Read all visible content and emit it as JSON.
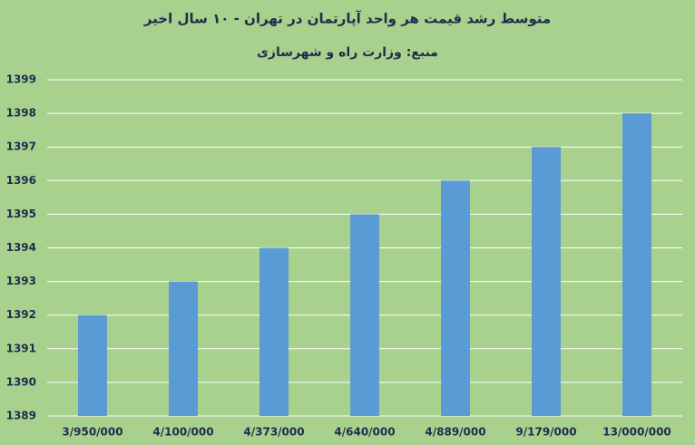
{
  "chart_data": {
    "type": "bar",
    "title": "متوسط رشد قیمت هر واحد آپارتمان در تهران - ۱۰ سال اخیر",
    "subtitle": "منبع: وزارت راه و شهرسازی",
    "categories": [
      "3/950/000",
      "4/100/000",
      "4/373/000",
      "4/640/000",
      "4/889/000",
      "9/179/000",
      "13/000/000"
    ],
    "values": [
      1392,
      1393,
      1394,
      1395,
      1396,
      1397,
      1398
    ],
    "color": "#5b9bd5",
    "ylim": [
      1389,
      1399
    ],
    "yticks": [
      1389,
      1390,
      1391,
      1392,
      1393,
      1394,
      1395,
      1396,
      1397,
      1398,
      1399
    ],
    "grid": true
  }
}
